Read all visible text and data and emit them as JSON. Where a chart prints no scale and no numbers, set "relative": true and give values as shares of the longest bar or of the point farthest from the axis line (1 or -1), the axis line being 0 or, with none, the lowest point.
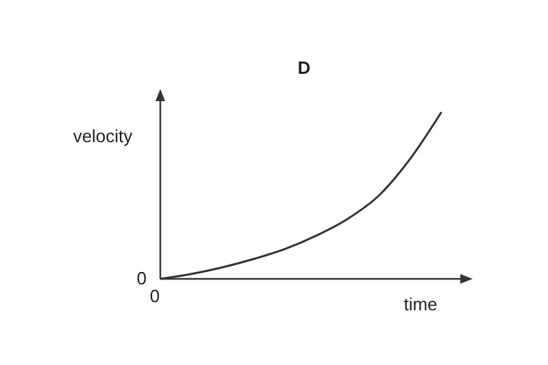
{
  "chart_data": {
    "type": "line",
    "relative": true,
    "title": "D",
    "xlabel": "time",
    "ylabel": "velocity",
    "annotations": [
      "0",
      "0"
    ],
    "categories": [
      null,
      null,
      null,
      null,
      null,
      null,
      null,
      null,
      null,
      null,
      null
    ],
    "series": [
      {
        "color": "#333333",
        "values": [
          0,
          0.03,
          0.07,
          0.12,
          0.18,
          0.26,
          0.36,
          0.5,
          0.72,
          1,
          null
        ]
      }
    ],
    "line_style": "solid"
  }
}
